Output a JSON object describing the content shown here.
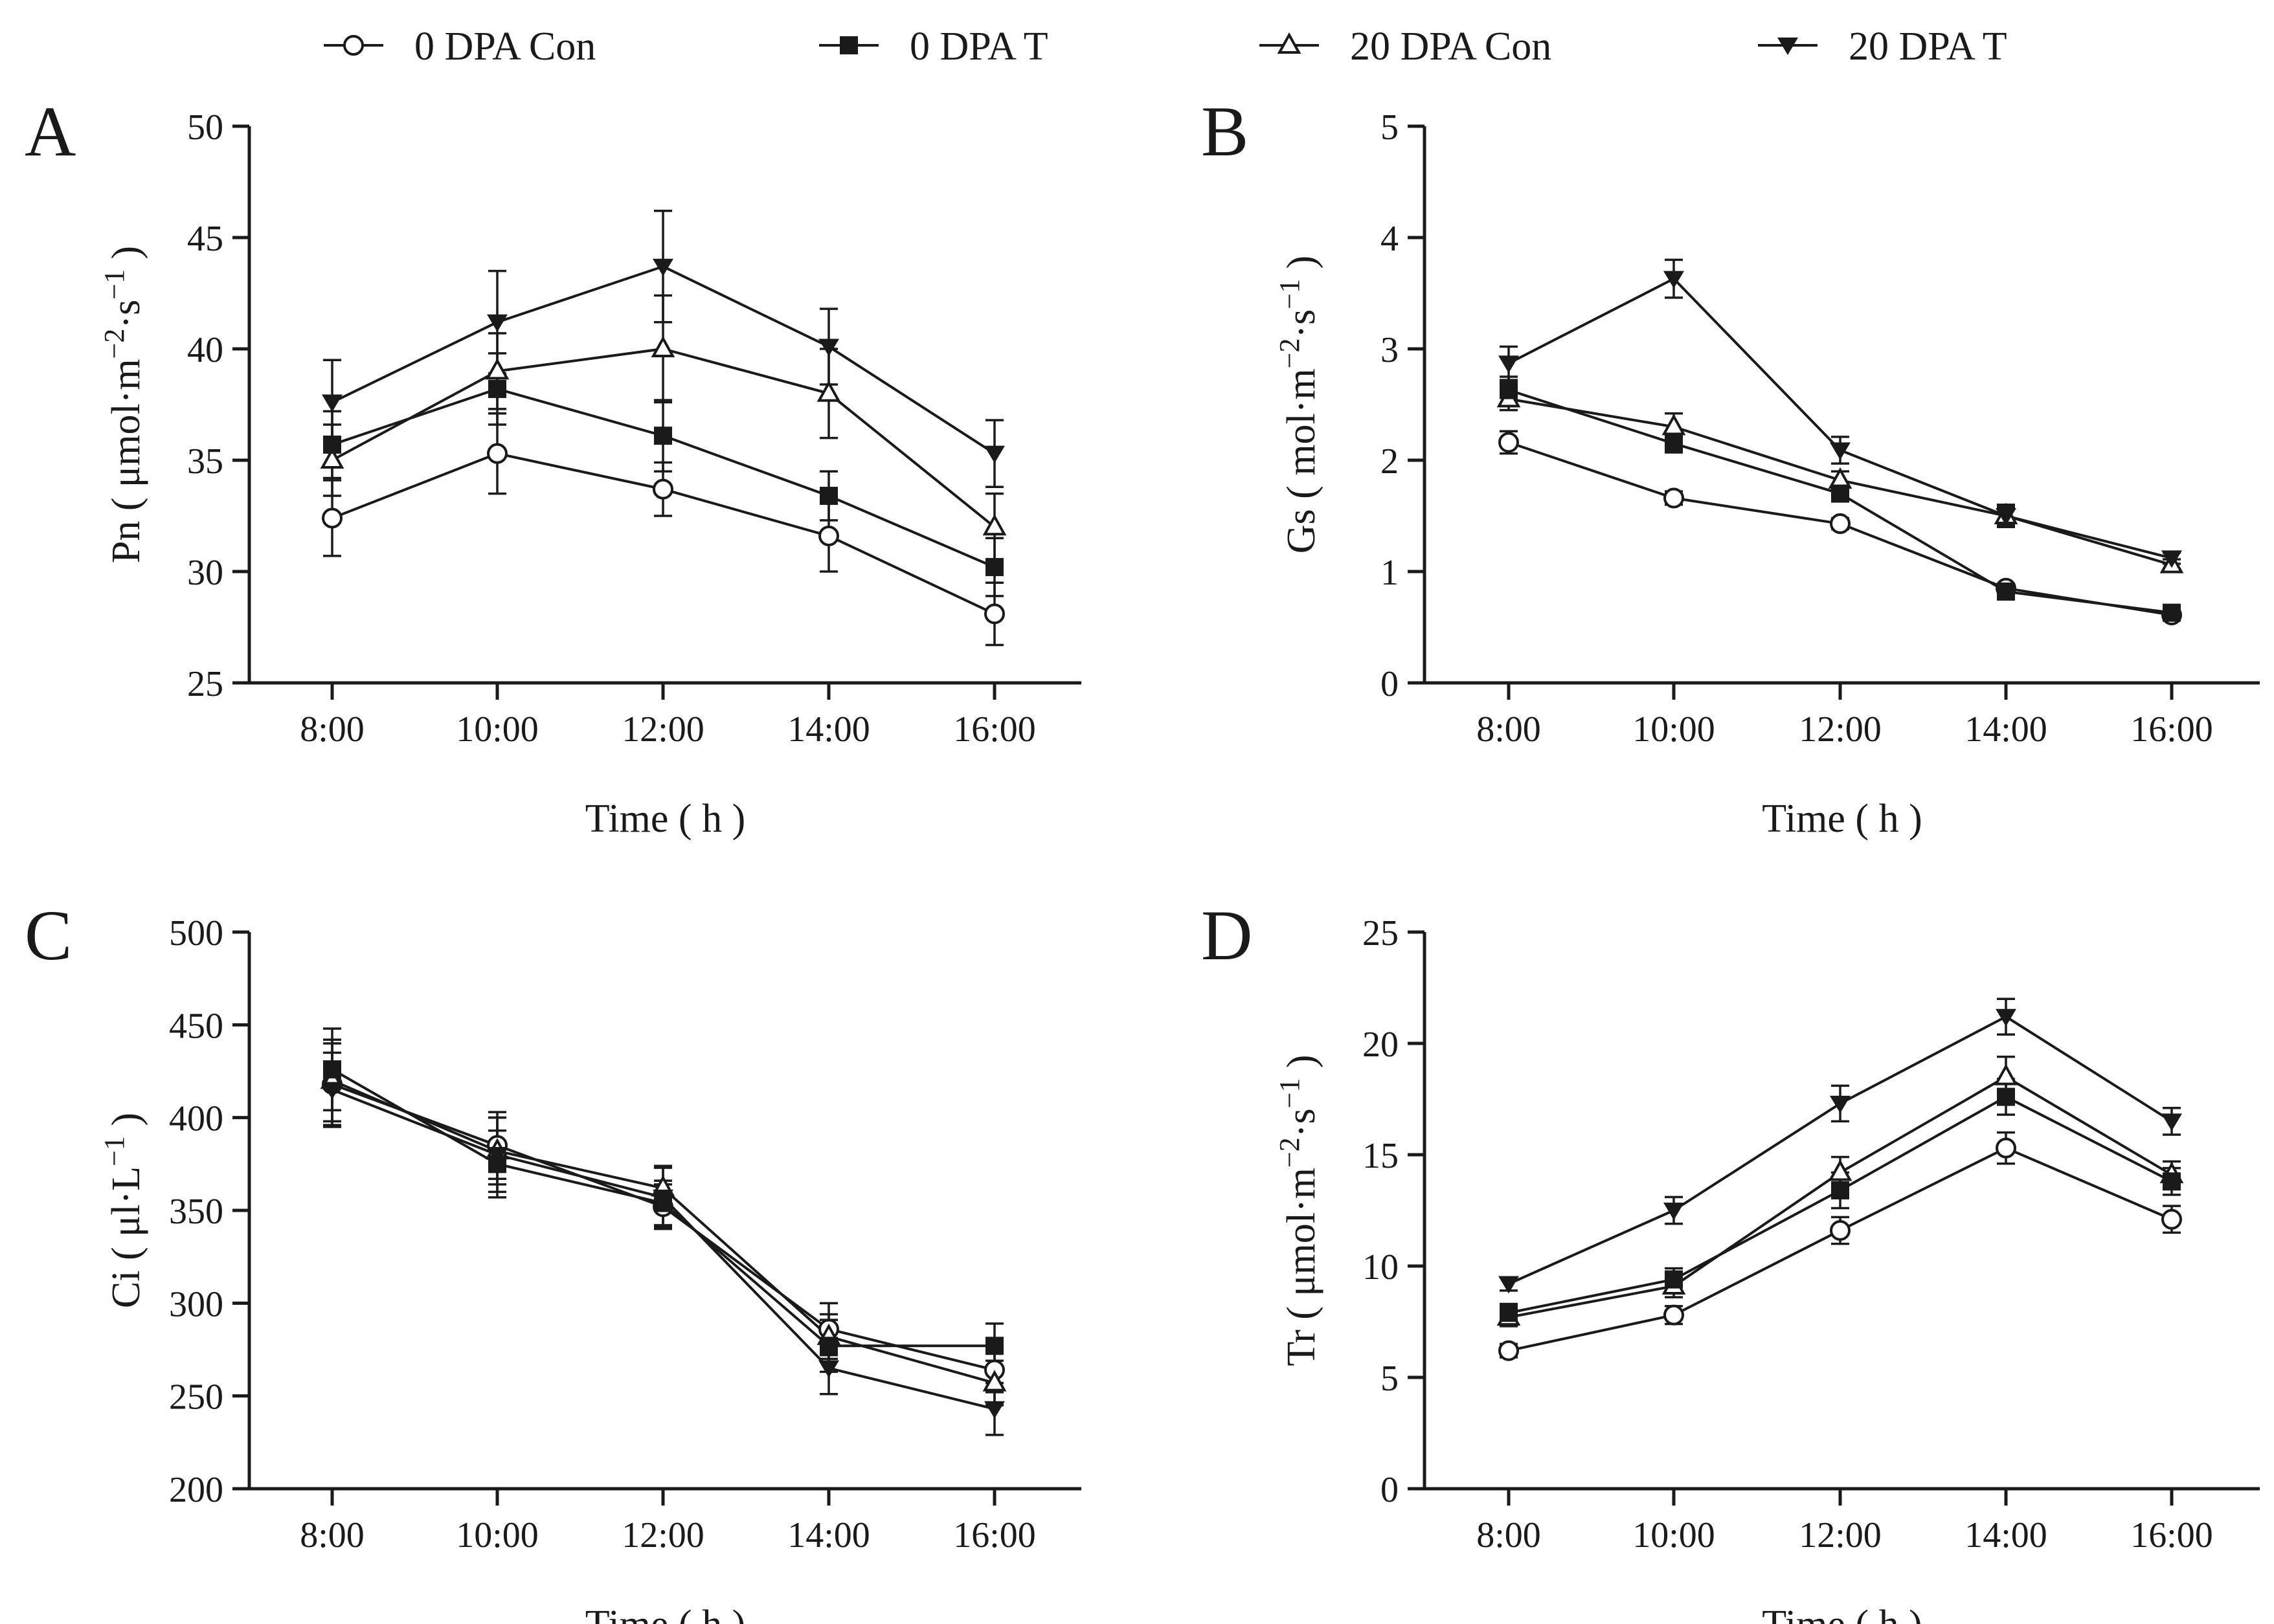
{
  "chart_data": {
    "legend": {
      "position": "top",
      "entries": [
        {
          "name": "0 DPA Con",
          "marker": "circle-open"
        },
        {
          "name": "0 DPA T",
          "marker": "square-filled"
        },
        {
          "name": "20 DPA Con",
          "marker": "triangle-up-open"
        },
        {
          "name": "20 DPA T",
          "marker": "triangle-down-filled"
        }
      ]
    },
    "panels": [
      {
        "type": "line",
        "panel_label": "A",
        "xlabel": "Time ( h )",
        "ylabel": {
          "text": "Pn ( μmol·m",
          "sup1": "−2",
          "mid": "·s",
          "sup2": "−1",
          "end": " )"
        },
        "categories": [
          "8:00",
          "10:00",
          "12:00",
          "14:00",
          "16:00"
        ],
        "ylim": [
          25,
          50
        ],
        "yticks": [
          25,
          30,
          35,
          40,
          45,
          50
        ],
        "series": [
          {
            "name": "0 DPA Con",
            "values": [
              32.4,
              35.3,
              33.7,
              31.6,
              28.1
            ],
            "errors": [
              1.7,
              1.8,
              1.2,
              1.6,
              1.4
            ]
          },
          {
            "name": "0 DPA T",
            "values": [
              35.7,
              38.2,
              36.1,
              33.4,
              30.2
            ],
            "errors": [
              1.5,
              1.6,
              1.6,
              1.1,
              1.3
            ]
          },
          {
            "name": "20 DPA Con",
            "values": [
              35.0,
              39.0,
              40.0,
              38.0,
              32.0
            ],
            "errors": [
              1.6,
              1.7,
              2.4,
              2.0,
              1.5
            ]
          },
          {
            "name": "20 DPA T",
            "values": [
              37.6,
              41.2,
              43.7,
              40.1,
              35.3
            ],
            "errors": [
              1.9,
              2.3,
              2.5,
              1.7,
              1.5
            ]
          }
        ]
      },
      {
        "type": "line",
        "panel_label": "B",
        "xlabel": "Time ( h )",
        "ylabel": {
          "text": "Gs ( mol·m",
          "sup1": "−2",
          "mid": "·s",
          "sup2": "−1",
          "end": " )"
        },
        "categories": [
          "8:00",
          "10:00",
          "12:00",
          "14:00",
          "16:00"
        ],
        "ylim": [
          0,
          5
        ],
        "yticks": [
          0,
          1,
          2,
          3,
          4,
          5
        ],
        "series": [
          {
            "name": "0 DPA Con",
            "values": [
              2.16,
              1.66,
              1.43,
              0.85,
              0.61
            ],
            "errors": [
              0.1,
              0.06,
              0.05,
              0.04,
              0.04
            ]
          },
          {
            "name": "0 DPA T",
            "values": [
              2.63,
              2.15,
              1.7,
              0.82,
              0.63
            ],
            "errors": [
              0.12,
              0.08,
              0.07,
              0.05,
              0.04
            ]
          },
          {
            "name": "20 DPA Con",
            "values": [
              2.55,
              2.3,
              1.82,
              1.5,
              1.06
            ],
            "errors": [
              0.1,
              0.12,
              0.08,
              0.1,
              0.05
            ]
          },
          {
            "name": "20 DPA T",
            "values": [
              2.87,
              3.63,
              2.09,
              1.5,
              1.12
            ],
            "errors": [
              0.15,
              0.17,
              0.12,
              0.08,
              0.05
            ]
          }
        ]
      },
      {
        "type": "line",
        "panel_label": "C",
        "xlabel": "Time ( h )",
        "ylabel": {
          "text": "Ci ( μl·L",
          "sup1": "−1",
          "mid": "",
          "sup2": "",
          "end": " )"
        },
        "categories": [
          "8:00",
          "10:00",
          "12:00",
          "14:00",
          "16:00"
        ],
        "ylim": [
          200,
          500
        ],
        "yticks": [
          200,
          250,
          300,
          350,
          400,
          450,
          500
        ],
        "series": [
          {
            "name": "0 DPA Con",
            "values": [
              418,
              385,
              352,
              286,
              264
            ],
            "errors": [
              22,
              18,
              12,
              14,
              12
            ]
          },
          {
            "name": "0 DPA T",
            "values": [
              426,
              375,
              354,
              277,
              277
            ],
            "errors": [
              22,
              18,
              12,
              14,
              12
            ]
          },
          {
            "name": "20 DPA Con",
            "values": [
              420,
              382,
              362,
              282,
              257
            ],
            "errors": [
              22,
              18,
              12,
              12,
              12
            ]
          },
          {
            "name": "20 DPA T",
            "values": [
              415,
              380,
              357,
              265,
              243
            ],
            "errors": [
              20,
              20,
              16,
              14,
              14
            ]
          }
        ]
      },
      {
        "type": "line",
        "panel_label": "D",
        "xlabel": "Time ( h )",
        "ylabel": {
          "text": "Tr ( μmol·m",
          "sup1": "−2",
          "mid": "·s",
          "sup2": "−1",
          "end": " )"
        },
        "categories": [
          "8:00",
          "10:00",
          "12:00",
          "14:00",
          "16:00"
        ],
        "ylim": [
          0,
          25
        ],
        "yticks": [
          0,
          5,
          10,
          15,
          20,
          25
        ],
        "series": [
          {
            "name": "0 DPA Con",
            "values": [
              6.2,
              7.8,
              11.6,
              15.3,
              12.1
            ],
            "errors": [
              0.3,
              0.4,
              0.6,
              0.7,
              0.6
            ]
          },
          {
            "name": "0 DPA T",
            "values": [
              7.9,
              9.4,
              13.4,
              17.6,
              13.8
            ],
            "errors": [
              0.4,
              0.5,
              0.8,
              0.8,
              0.6
            ]
          },
          {
            "name": "20 DPA Con",
            "values": [
              7.7,
              9.1,
              14.2,
              18.5,
              14.1
            ],
            "errors": [
              0.4,
              0.5,
              0.7,
              0.9,
              0.6
            ]
          },
          {
            "name": "20 DPA T",
            "values": [
              9.2,
              12.5,
              17.3,
              21.2,
              16.5
            ],
            "errors": [
              0.3,
              0.6,
              0.8,
              0.8,
              0.6
            ]
          }
        ]
      }
    ]
  }
}
